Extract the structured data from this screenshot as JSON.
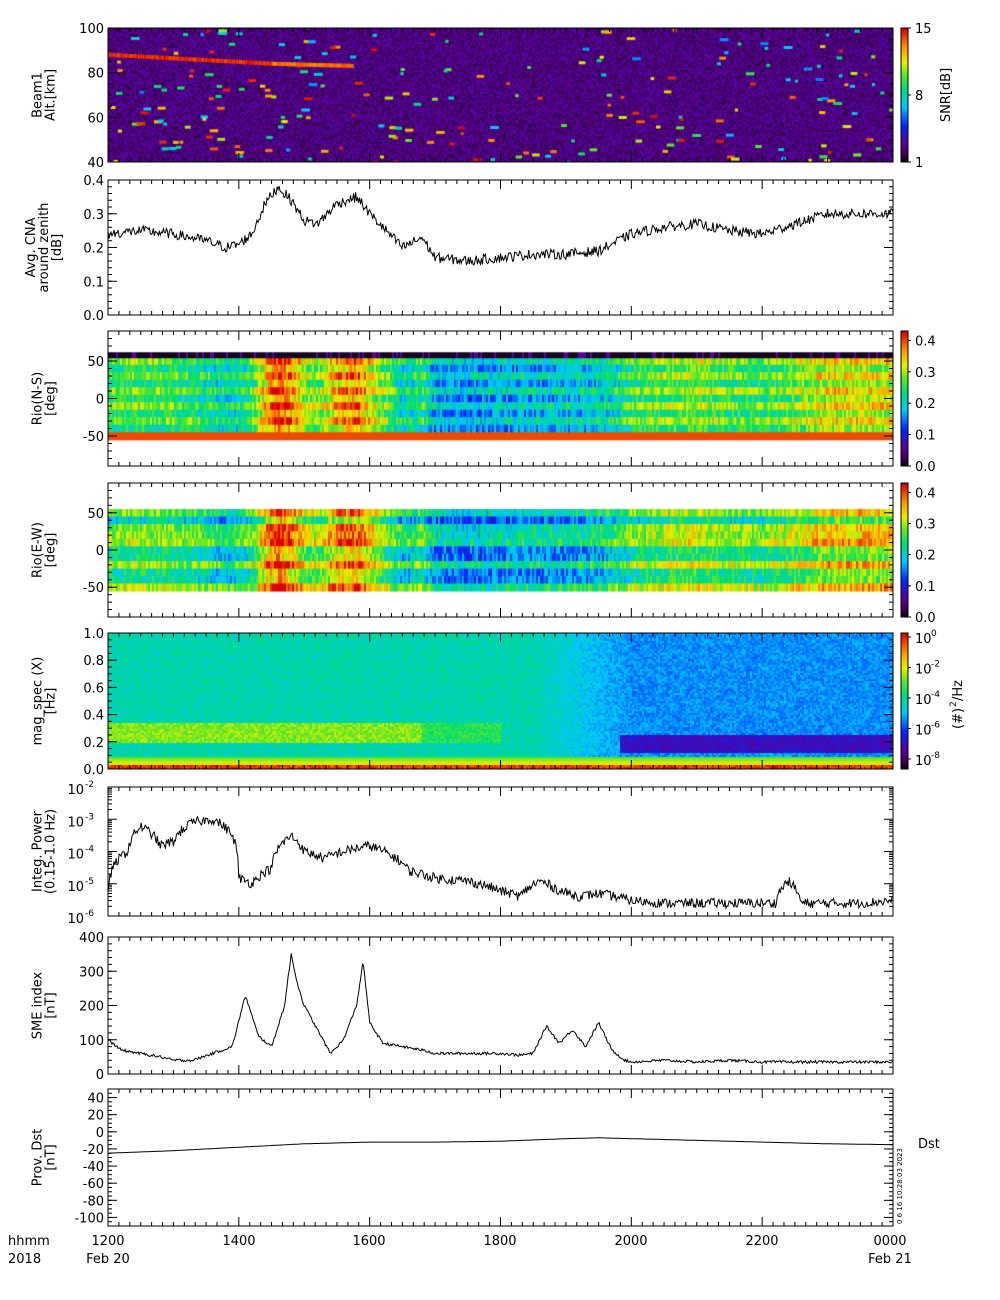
{
  "footer": {
    "row1": [
      "hhmm",
      "1200",
      "1400",
      "1600",
      "1800",
      "2000",
      "2200",
      "0000"
    ],
    "row2": [
      "2018",
      "Feb 20",
      "Feb 21"
    ]
  },
  "side_stamp": "0 6 16 10:28:03 2023",
  "chart_data": [
    {
      "id": "p1",
      "type": "heatmap",
      "ylabel": [
        "Beam1",
        "Alt.[km]"
      ],
      "ylim": [
        40,
        100
      ],
      "yticks": [
        40,
        60,
        80,
        100
      ],
      "colorbar": {
        "label": "SNR[dB]",
        "ticks": [
          "15",
          "8",
          "1"
        ],
        "range": [
          1,
          15
        ]
      },
      "features": [
        {
          "from": "1200",
          "to": "1430",
          "alt_start": 88,
          "alt_end": 84,
          "snr": 15
        },
        {
          "from": "1430",
          "to": "1545",
          "alt_start": 84,
          "alt_end": 83,
          "snr": 14
        }
      ],
      "background_snr": 2.5
    },
    {
      "id": "p2",
      "type": "line",
      "ylabel": [
        "Avg. CNA",
        "around zenith",
        "[dB]"
      ],
      "ylim": [
        0.0,
        0.4
      ],
      "yticks": [
        "0.0",
        "0.1",
        "0.2",
        "0.3",
        "0.4"
      ],
      "x_hours": [
        12.0,
        12.5,
        13.0,
        13.5,
        13.8,
        14.0,
        14.2,
        14.4,
        14.6,
        14.8,
        15.0,
        15.2,
        15.5,
        15.8,
        16.0,
        16.2,
        16.5,
        16.8,
        17.0,
        17.5,
        18.0,
        18.5,
        19.0,
        19.5,
        20.0,
        20.5,
        21.0,
        21.5,
        22.0,
        22.5,
        23.0,
        23.5,
        24.0
      ],
      "y": [
        0.24,
        0.25,
        0.24,
        0.22,
        0.2,
        0.21,
        0.24,
        0.33,
        0.38,
        0.34,
        0.28,
        0.27,
        0.33,
        0.35,
        0.3,
        0.26,
        0.2,
        0.23,
        0.17,
        0.16,
        0.17,
        0.18,
        0.18,
        0.19,
        0.24,
        0.26,
        0.27,
        0.25,
        0.24,
        0.27,
        0.3,
        0.3,
        0.3
      ]
    },
    {
      "id": "p3",
      "type": "heatmap",
      "ylabel": [
        "Rio(N-S)",
        "[deg]"
      ],
      "ylim": [
        -90,
        90
      ],
      "yticks": [
        -50,
        0,
        50
      ],
      "beam_range": [
        -55,
        55
      ],
      "colorbar": {
        "label": "",
        "ticks": [
          "0.4",
          "0.3",
          "0.2",
          "0.1",
          "0.0"
        ],
        "range": [
          0,
          0.43
        ]
      }
    },
    {
      "id": "p4",
      "type": "heatmap",
      "ylabel": [
        "Rio(E-W)",
        "[deg]"
      ],
      "ylim": [
        -90,
        90
      ],
      "yticks": [
        -50,
        0,
        50
      ],
      "beam_range": [
        -55,
        55
      ],
      "colorbar": {
        "label": "",
        "ticks": [
          "0.4",
          "0.3",
          "0.2",
          "0.1",
          "0.0"
        ],
        "range": [
          0,
          0.43
        ]
      }
    },
    {
      "id": "p5",
      "type": "heatmap",
      "ylabel": [
        "mag_spec (X)",
        "[Hz]"
      ],
      "ylim": [
        0.0,
        1.0
      ],
      "yticks": [
        "0.0",
        "0.2",
        "0.4",
        "0.6",
        "0.8",
        "1.0"
      ],
      "colorbar": {
        "label": "(#)",
        "label_sup": "2",
        "label_tail": "/Hz",
        "ticks": [
          "0",
          "-2",
          "-4",
          "-6",
          "-8"
        ],
        "tick_base": "10"
      }
    },
    {
      "id": "p6",
      "type": "line",
      "yscale": "log",
      "ylabel": [
        "Integ. Power",
        "(0.15-1.0 Hz)"
      ],
      "ylim_exp": [
        -6,
        -2
      ],
      "yticks_exp": [
        "-2",
        "-3",
        "-4",
        "-5",
        "-6"
      ],
      "tick_base": "10",
      "x_hours": [
        12.0,
        12.3,
        12.5,
        12.8,
        13.0,
        13.3,
        13.6,
        13.9,
        14.0,
        14.2,
        14.5,
        14.8,
        15.0,
        15.3,
        15.6,
        16.0,
        16.3,
        16.6,
        17.0,
        17.5,
        18.0,
        18.3,
        18.6,
        18.9,
        19.2,
        19.5,
        20.0,
        20.5,
        21.0,
        21.5,
        22.0,
        22.2,
        22.4,
        22.6,
        23.0,
        23.5,
        24.0
      ],
      "y": [
        7e-06,
        0.0001,
        0.0006,
        0.00015,
        0.0002,
        0.0008,
        0.001,
        0.0003,
        1.5e-05,
        1e-05,
        3e-05,
        0.0003,
        0.0001,
        6e-05,
        0.0001,
        0.00015,
        8e-05,
        2.5e-05,
        1.5e-05,
        1.2e-05,
        6e-06,
        4e-06,
        1.2e-05,
        6e-06,
        4e-06,
        5e-06,
        3e-06,
        2.5e-06,
        2.5e-06,
        2.5e-06,
        2.5e-06,
        2.5e-06,
        1.2e-05,
        2.5e-06,
        2.5e-06,
        2.5e-06,
        3e-06
      ]
    },
    {
      "id": "p7",
      "type": "line",
      "ylabel": [
        "SME index",
        "[nT]"
      ],
      "ylim": [
        0,
        400
      ],
      "yticks": [
        "0",
        "100",
        "200",
        "300",
        "400"
      ],
      "x_hours": [
        12.0,
        12.2,
        12.5,
        12.8,
        13.0,
        13.3,
        13.6,
        13.9,
        14.1,
        14.3,
        14.5,
        14.7,
        14.8,
        14.9,
        15.0,
        15.2,
        15.4,
        15.6,
        15.8,
        15.9,
        16.0,
        16.2,
        16.5,
        16.8,
        17.0,
        17.5,
        18.0,
        18.3,
        18.5,
        18.7,
        18.9,
        19.1,
        19.3,
        19.5,
        19.7,
        19.9,
        20.0,
        20.5,
        21.0,
        21.5,
        22.0,
        23.0,
        24.0
      ],
      "y": [
        100,
        70,
        60,
        50,
        40,
        40,
        60,
        80,
        230,
        110,
        80,
        200,
        350,
        260,
        200,
        130,
        60,
        100,
        200,
        330,
        150,
        90,
        80,
        70,
        60,
        60,
        60,
        55,
        60,
        140,
        90,
        130,
        80,
        150,
        70,
        40,
        35,
        40,
        35,
        40,
        35,
        35,
        35
      ]
    },
    {
      "id": "p8",
      "type": "line",
      "ylabel": [
        "Prov. Dst",
        "[nT]"
      ],
      "ylim": [
        -110,
        50
      ],
      "yticks": [
        "40",
        "20",
        "0",
        "-20",
        "-40",
        "-60",
        "-80",
        "-100"
      ],
      "right_label": "Dst",
      "x_hours": [
        12.0,
        13.0,
        14.0,
        15.0,
        16.0,
        17.0,
        18.0,
        19.0,
        19.5,
        20.0,
        21.0,
        22.0,
        23.0,
        24.0
      ],
      "y": [
        -25,
        -22,
        -18,
        -14,
        -12,
        -12,
        -11,
        -8,
        -7,
        -8,
        -10,
        -12,
        -14,
        -15
      ]
    }
  ]
}
